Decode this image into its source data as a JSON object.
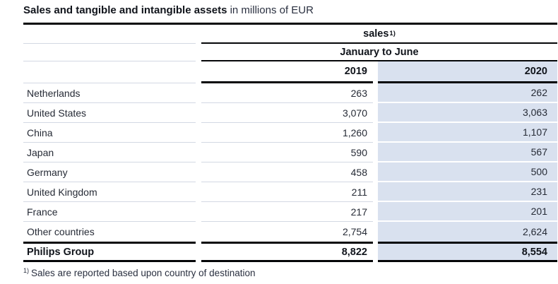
{
  "title": {
    "main": "Sales and tangible and intangible assets",
    "suffix": " in millions of EUR"
  },
  "table": {
    "group_header": {
      "label": "sales",
      "footnote_ref": "1)"
    },
    "period_header": "January to June",
    "year_columns": [
      "2019",
      "2020"
    ],
    "rows": [
      {
        "label": "Netherlands",
        "y2019": "263",
        "y2020": "262"
      },
      {
        "label": "United States",
        "y2019": "3,070",
        "y2020": "3,063"
      },
      {
        "label": "China",
        "y2019": "1,260",
        "y2020": "1,107"
      },
      {
        "label": "Japan",
        "y2019": "590",
        "y2020": "567"
      },
      {
        "label": "Germany",
        "y2019": "458",
        "y2020": "500"
      },
      {
        "label": "United Kingdom",
        "y2019": "211",
        "y2020": "231"
      },
      {
        "label": "France",
        "y2019": "217",
        "y2020": "201"
      },
      {
        "label": "Other countries",
        "y2019": "2,754",
        "y2020": "2,624"
      }
    ],
    "total_row": {
      "label": "Philips Group",
      "y2019": "8,822",
      "y2020": "8,554"
    }
  },
  "footnote": {
    "ref": "1)",
    "text": "Sales are reported based upon country of destination"
  },
  "colors": {
    "highlight_column_bg": "#d9e1ef",
    "row_separator": "#d3d8e3",
    "rule": "#050608",
    "text": "#262b36",
    "heading_text": "#10141b"
  }
}
